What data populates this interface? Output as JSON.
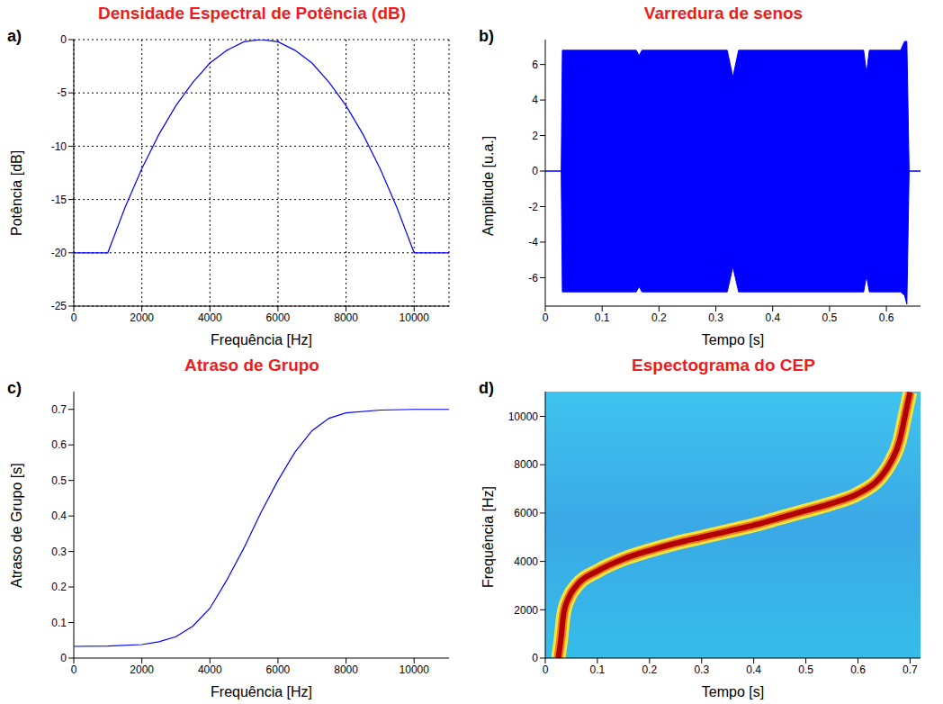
{
  "chart_data": [
    {
      "panel_label": "a)",
      "type": "line",
      "title": "Densidade Espectral de Potência (dB)",
      "xlabel": "Frequência [Hz]",
      "ylabel": "Potência [dB]",
      "color": "#0000ff",
      "grid": true,
      "x": [
        0,
        1000,
        1500,
        2000,
        2500,
        3000,
        3500,
        4000,
        4500,
        5000,
        5500,
        6000,
        6500,
        7000,
        7500,
        8000,
        8500,
        9000,
        9500,
        10000,
        11025
      ],
      "values": [
        -20,
        -20,
        -15.8,
        -12.1,
        -8.9,
        -6.2,
        -4.0,
        -2.2,
        -1.0,
        -0.2,
        0,
        -0.2,
        -1.0,
        -2.2,
        -4.0,
        -6.2,
        -8.9,
        -12.1,
        -15.8,
        -20,
        -20
      ],
      "xlim": [
        0,
        11025
      ],
      "xticks": [
        0,
        2000,
        4000,
        6000,
        8000,
        10000
      ],
      "ylim": [
        -25,
        0
      ],
      "yticks": [
        -25,
        -20,
        -15,
        -10,
        -5,
        0
      ]
    },
    {
      "panel_label": "b)",
      "type": "area",
      "title": "Varredura de senos",
      "xlabel": "Tempo [s]",
      "ylabel": "Amplitude [u.a.]",
      "color": "#0000ff",
      "grid": false,
      "x": [
        0,
        0.028,
        0.03,
        0.16,
        0.165,
        0.17,
        0.175,
        0.32,
        0.33,
        0.34,
        0.56,
        0.565,
        0.57,
        0.625,
        0.632,
        0.636,
        0.64,
        0.66
      ],
      "upper": [
        0,
        0,
        6.8,
        6.8,
        6.5,
        6.8,
        6.8,
        6.8,
        5.3,
        6.8,
        6.8,
        5.5,
        6.8,
        6.8,
        7.3,
        7.3,
        0,
        0
      ],
      "lower": [
        0,
        0,
        -6.8,
        -6.8,
        -6.5,
        -6.8,
        -6.8,
        -6.8,
        -5.4,
        -6.8,
        -6.8,
        -5.9,
        -6.8,
        -6.8,
        -7.0,
        -7.5,
        0,
        0
      ],
      "xlim": [
        0,
        0.66
      ],
      "xticks": [
        0,
        0.1,
        0.2,
        0.3,
        0.4,
        0.5,
        0.6
      ],
      "ylim": [
        -7.6,
        7.4
      ],
      "yticks": [
        -6,
        -4,
        -2,
        0,
        2,
        4,
        6
      ]
    },
    {
      "panel_label": "c)",
      "type": "line",
      "title": "Atraso de Grupo",
      "xlabel": "Frequência [Hz]",
      "ylabel": "Atraso de Grupo [s]",
      "color": "#0000ff",
      "grid": false,
      "x": [
        0,
        1000,
        2000,
        2500,
        3000,
        3500,
        4000,
        4500,
        5000,
        5500,
        6000,
        6500,
        7000,
        7500,
        8000,
        9000,
        10000,
        11025
      ],
      "values": [
        0.033,
        0.034,
        0.038,
        0.046,
        0.06,
        0.09,
        0.14,
        0.22,
        0.31,
        0.41,
        0.5,
        0.58,
        0.64,
        0.675,
        0.69,
        0.698,
        0.7,
        0.7
      ],
      "xlim": [
        0,
        11025
      ],
      "xticks": [
        0,
        2000,
        4000,
        6000,
        8000,
        10000
      ],
      "ylim": [
        0,
        0.75
      ],
      "yticks": [
        0,
        0.1,
        0.2,
        0.3,
        0.4,
        0.5,
        0.6,
        0.7
      ]
    },
    {
      "panel_label": "d)",
      "type": "spectrogram",
      "title": "Espectograma do CEP",
      "xlabel": "Tempo [s]",
      "ylabel": "Frequência [Hz]",
      "color": "#b00000",
      "grid": false,
      "x": [
        0.025,
        0.03,
        0.035,
        0.045,
        0.06,
        0.1,
        0.15,
        0.2,
        0.25,
        0.3,
        0.35,
        0.4,
        0.45,
        0.5,
        0.55,
        0.6,
        0.64,
        0.66,
        0.68,
        0.69,
        0.7
      ],
      "values": [
        0,
        800,
        1800,
        2500,
        3000,
        3600,
        4100,
        4450,
        4750,
        5000,
        5250,
        5500,
        5800,
        6100,
        6400,
        6800,
        7400,
        8000,
        9000,
        10000,
        11000
      ],
      "xlim": [
        0,
        0.72
      ],
      "xticks": [
        0,
        0.1,
        0.2,
        0.3,
        0.4,
        0.5,
        0.6,
        0.7
      ],
      "ylim": [
        0,
        11025
      ],
      "yticks": [
        0,
        2000,
        4000,
        6000,
        8000,
        10000
      ]
    }
  ]
}
